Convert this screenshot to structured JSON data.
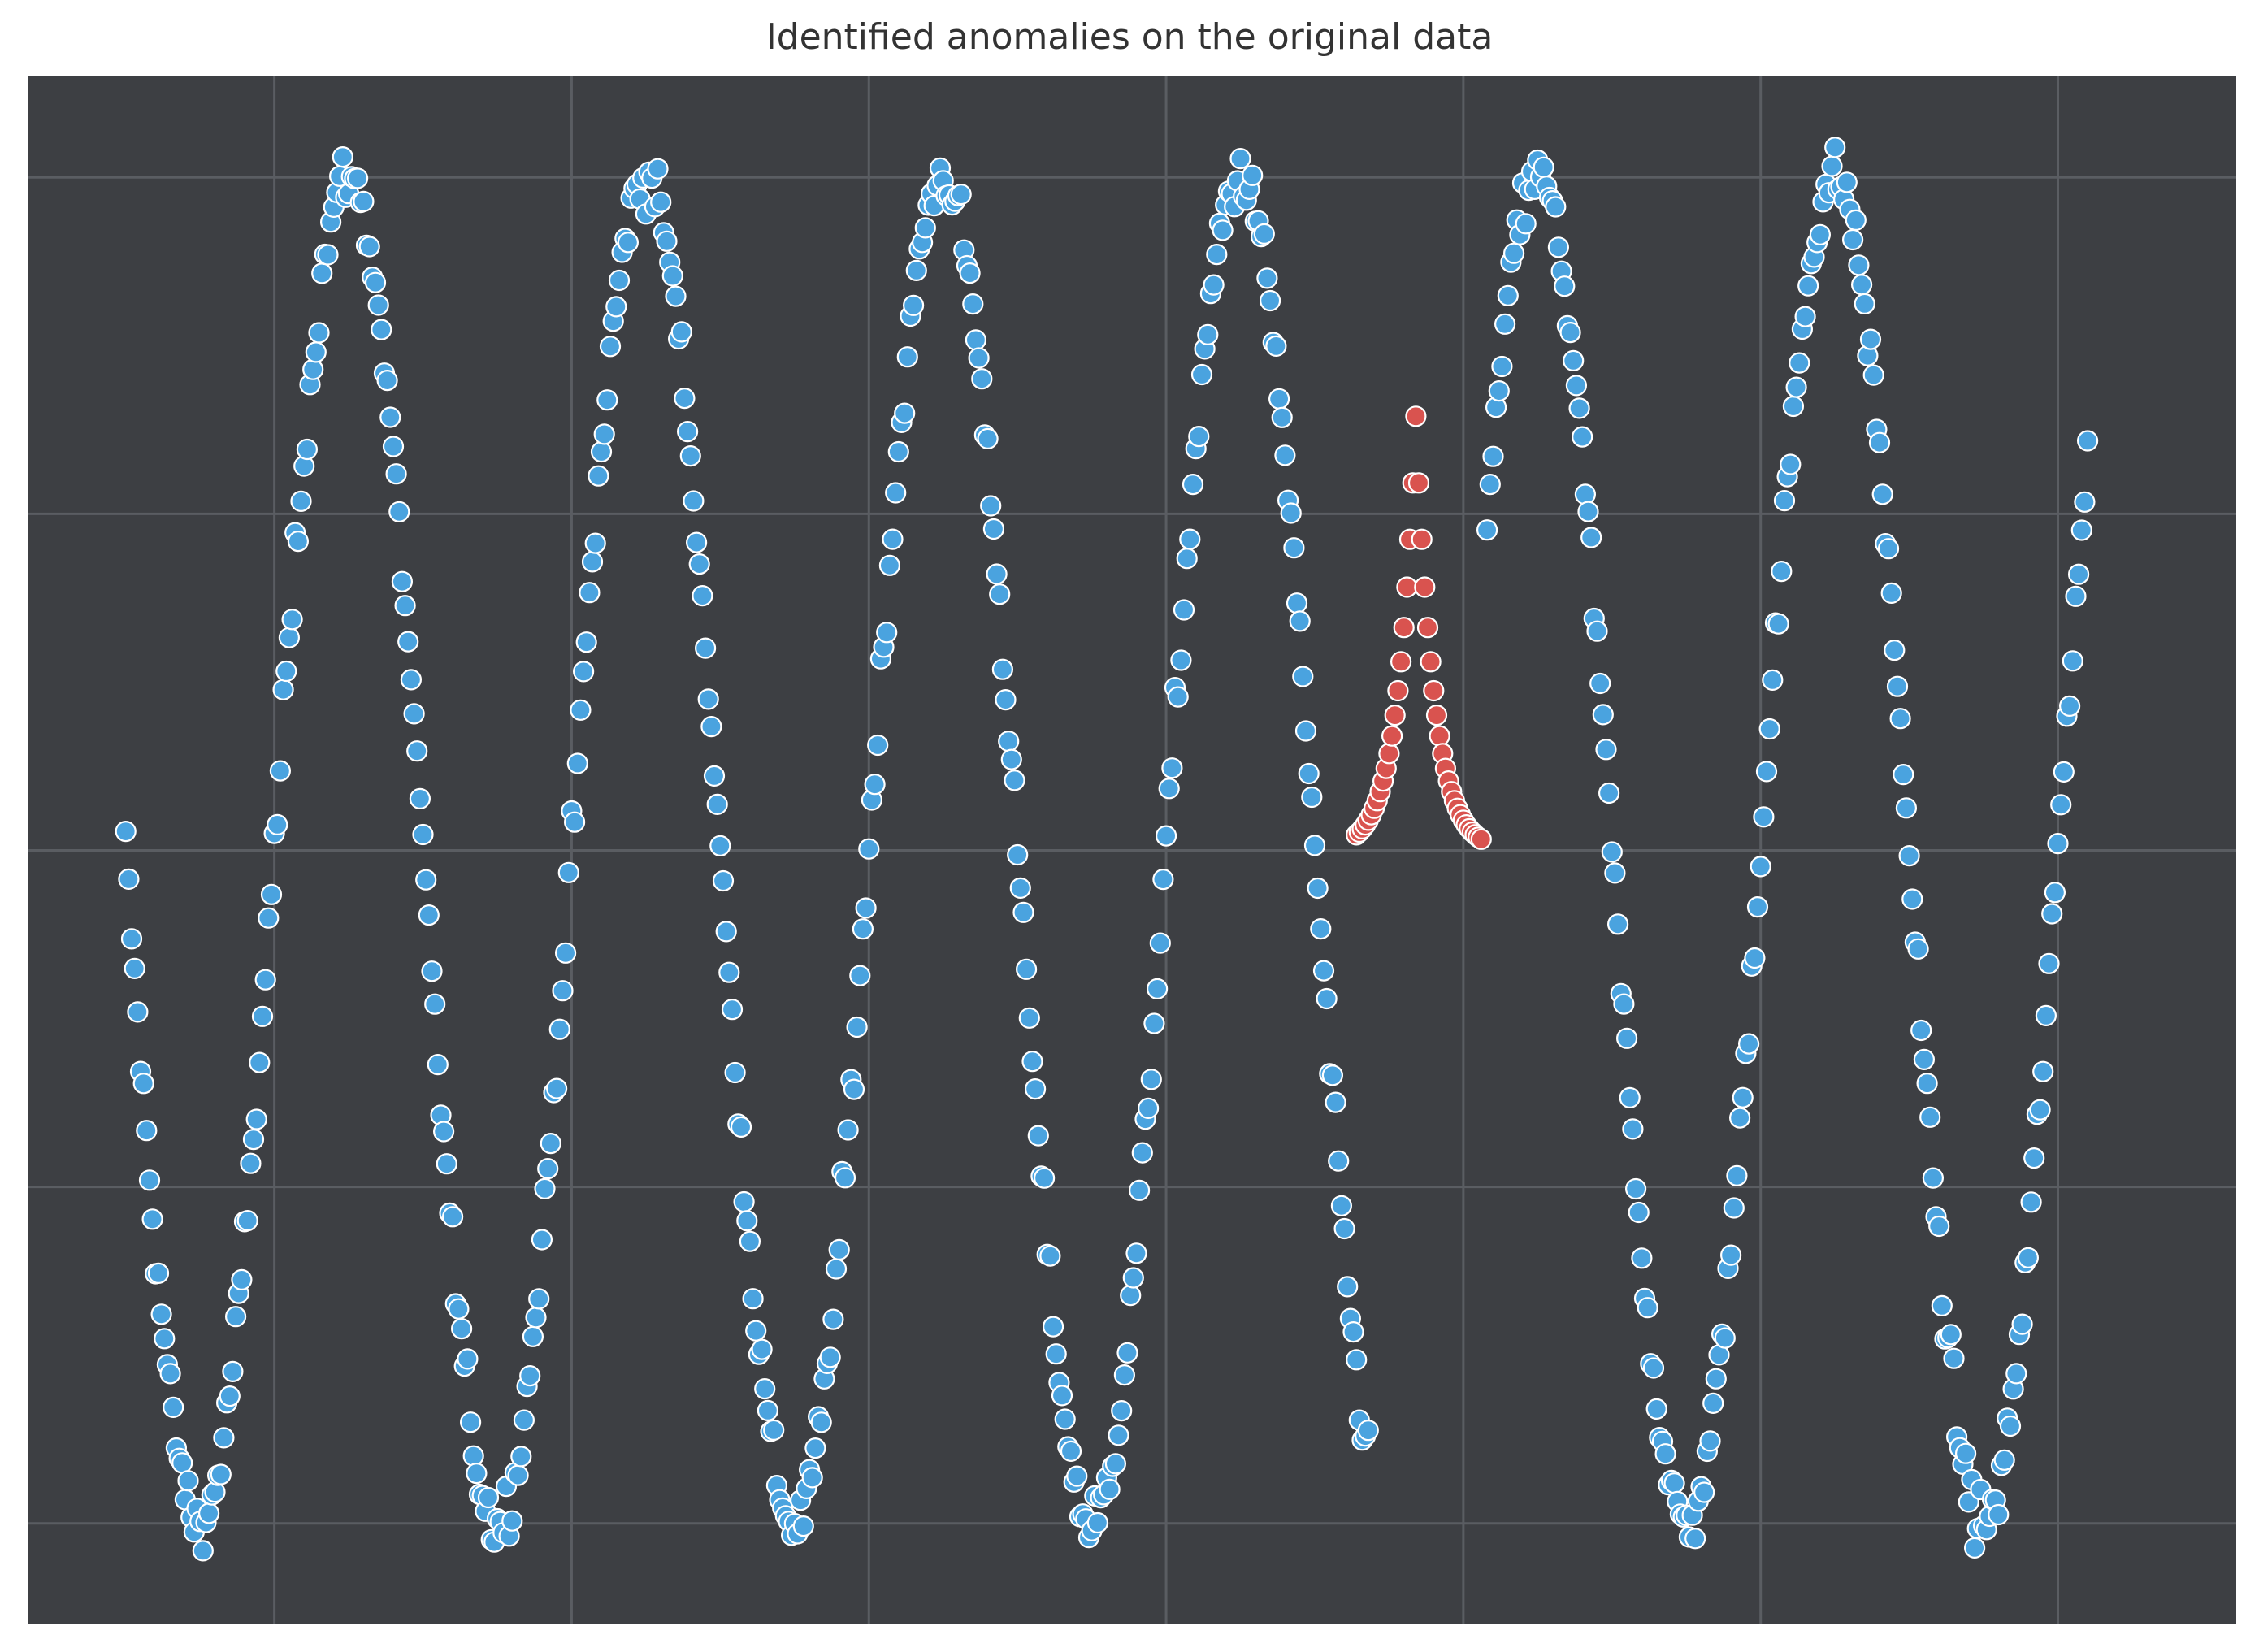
{
  "chart_data": {
    "type": "scatter",
    "title": "Identified anomalies on the original data",
    "xlabel": "",
    "ylabel": "",
    "xlim": [
      -0.83,
      6.6
    ],
    "ylim": [
      -1.3,
      3.3
    ],
    "grid": true,
    "grid_x": [
      0,
      1,
      2,
      3,
      4,
      5,
      6
    ],
    "grid_y": [
      -1,
      0,
      1,
      2,
      3
    ],
    "background": "#3d3f43",
    "grid_color": "#5a5d62",
    "series": [
      {
        "role": "normal",
        "color": "#4aa3df",
        "formula": "y = 1 + 2*sin(2*pi*x) + noise",
        "x_range": [
          -0.5,
          6.1
        ],
        "note": "one point per 0.01 in x, omitting the anomaly window 3.7-4.1"
      },
      {
        "role": "anomaly",
        "color": "#d9534f",
        "x_range": [
          3.64,
          4.06
        ],
        "peak_x": 3.84,
        "peak_y": 2.29,
        "base_y": 1.0
      }
    ]
  }
}
